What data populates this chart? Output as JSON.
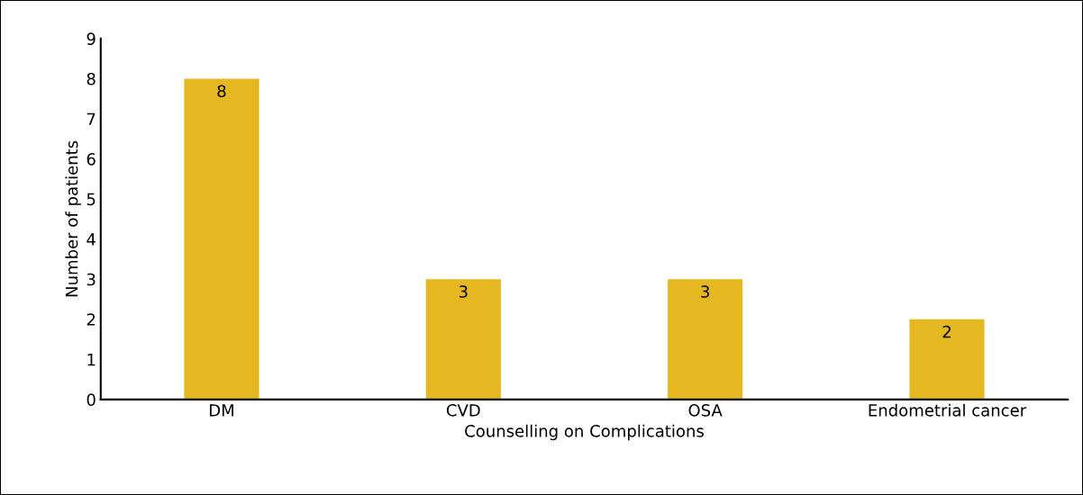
{
  "chart_data": {
    "type": "bar",
    "xlabel": "Counselling on Complications",
    "ylabel": "Number of patients",
    "categories": [
      "DM",
      "CVD",
      "OSA",
      "Endometrial cancer"
    ],
    "values": [
      8,
      3,
      3,
      2
    ],
    "color": "#e5b821",
    "ylim": [
      0,
      9
    ],
    "yticks": [
      0,
      1,
      2,
      3,
      4,
      5,
      6,
      7,
      8,
      9
    ],
    "grid": false,
    "data_labels": true
  }
}
